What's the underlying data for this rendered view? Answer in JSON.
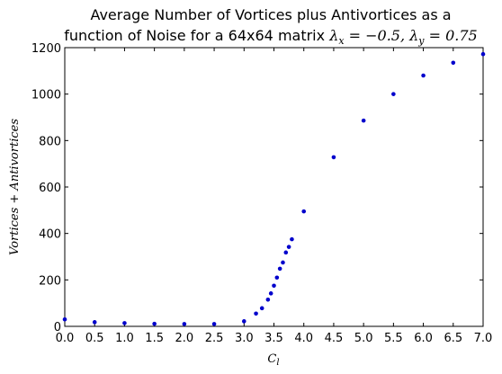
{
  "chart_data": {
    "type": "scatter",
    "title_line1": "Average Number of Vortices plus Antivortices as a",
    "title_line2_text": "function of Noise for a 64x64 matrix ",
    "title_line2_math": "λ",
    "title_line2_math_sub_x": "x",
    "title_line2_math_mid": " = −0.5, λ",
    "title_line2_math_sub_y": "y",
    "title_line2_math_end": " = 0.75",
    "xlabel": "C",
    "xlabel_sub": "l",
    "ylabel": "Vortices + Antivortices",
    "xlim": [
      0,
      7
    ],
    "ylim": [
      0,
      1200
    ],
    "xticks": [
      0.0,
      0.5,
      1.0,
      1.5,
      2.0,
      2.5,
      3.0,
      3.5,
      4.0,
      4.5,
      5.0,
      5.5,
      6.0,
      6.5,
      7.0
    ],
    "xtick_labels": [
      "0.0",
      "0.5",
      "1.0",
      "1.5",
      "2.0",
      "2.5",
      "3.0",
      "3.5",
      "4.0",
      "4.5",
      "5.0",
      "5.5",
      "6.0",
      "6.5",
      "7.0"
    ],
    "yticks": [
      0,
      200,
      400,
      600,
      800,
      1000,
      1200
    ],
    "ytick_labels": [
      "0",
      "200",
      "400",
      "600",
      "800",
      "1000",
      "1200"
    ],
    "grid": false,
    "marker_color": "#0000cc",
    "series": [
      {
        "x": [
          0.0,
          0.5,
          1.0,
          1.5,
          2.0,
          2.5,
          3.0,
          3.2,
          3.3,
          3.4,
          3.45,
          3.5,
          3.55,
          3.6,
          3.65,
          3.7,
          3.75,
          3.8,
          4.0,
          4.5,
          5.0,
          5.5,
          6.0,
          6.5,
          7.0
        ],
        "y": [
          30,
          18,
          14,
          11,
          10,
          10,
          22,
          55,
          78,
          115,
          142,
          175,
          210,
          248,
          275,
          318,
          342,
          375,
          495,
          728,
          886,
          1000,
          1080,
          1135,
          1172
        ]
      }
    ]
  }
}
